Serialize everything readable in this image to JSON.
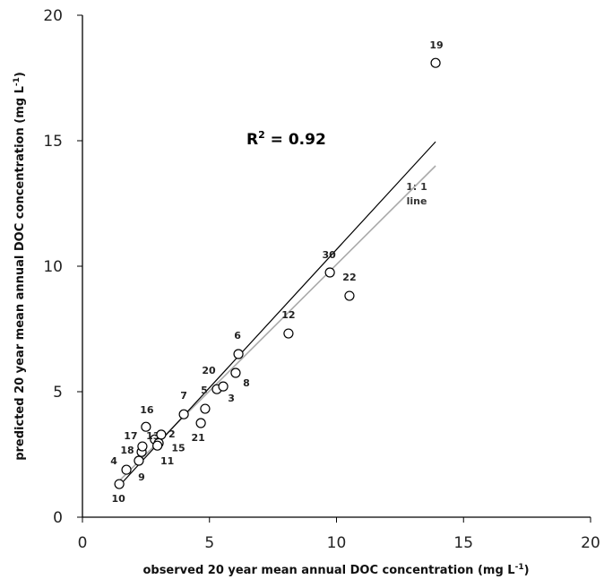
{
  "chart_data": {
    "type": "scatter",
    "x_label": {
      "text": "observed 20 year mean annual DOC concentration (mg L",
      "sup": "-1",
      "end": ")"
    },
    "y_label": {
      "text": "predicted 20 year mean annual DOC concentration (mg L",
      "sup": "-1",
      "end": ")"
    },
    "xlim": [
      0,
      20
    ],
    "ylim": [
      0,
      20
    ],
    "xticks": [
      0,
      5,
      10,
      15,
      20
    ],
    "yticks": [
      0,
      5,
      10,
      15,
      20
    ],
    "grid": false,
    "series": [
      {
        "color": "#000000",
        "labels": [
          "10",
          "4",
          "9",
          "18",
          "17",
          "16",
          "13",
          "2",
          "15",
          "11",
          "7",
          "21",
          "5",
          "20",
          "3",
          "8",
          "6",
          "12",
          "30",
          "22",
          "19"
        ],
        "x": [
          1.45,
          1.73,
          2.22,
          2.33,
          2.36,
          2.5,
          2.85,
          3.1,
          3.0,
          2.95,
          3.99,
          4.66,
          4.83,
          5.29,
          5.54,
          6.03,
          6.14,
          8.11,
          9.74,
          10.51,
          13.9
        ],
        "y": [
          1.32,
          1.89,
          2.25,
          2.6,
          2.82,
          3.6,
          3.1,
          3.29,
          2.95,
          2.85,
          4.1,
          3.75,
          4.32,
          5.1,
          5.21,
          5.75,
          6.5,
          7.32,
          9.75,
          8.82,
          18.1
        ]
      }
    ],
    "fit_line": {
      "color": "#000000",
      "x": [
        1.45,
        13.9
      ],
      "y": [
        1.25,
        14.96
      ]
    },
    "identity_line": {
      "color": "#aaaaaa",
      "label": [
        "1: 1",
        "line"
      ],
      "x": [
        1.45,
        13.9
      ],
      "y": [
        1.45,
        14.0
      ]
    },
    "r2_label": {
      "base": "R",
      "sup": "2",
      "rest": " = 0.92"
    }
  }
}
